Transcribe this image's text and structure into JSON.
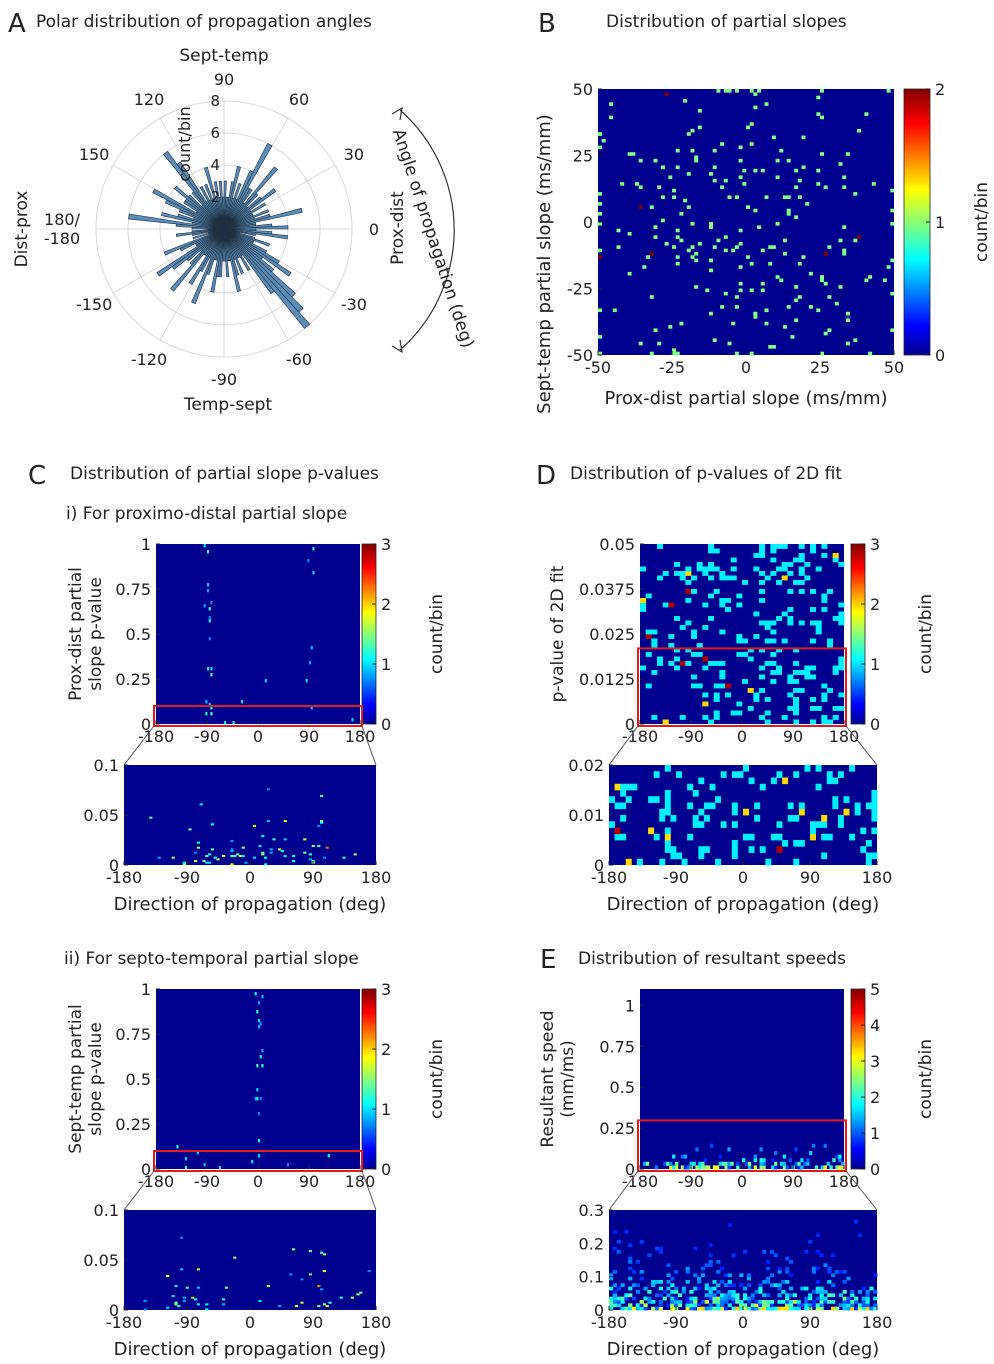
{
  "panels": {
    "A": {
      "letter": "A",
      "title": "Polar distribution of propagation angles"
    },
    "B": {
      "letter": "B",
      "title": "Distribution of partial slopes"
    },
    "C": {
      "letter": "C",
      "title": "Distribution of partial slope p-values",
      "sub_i": "i)  For proximo-distal partial slope",
      "sub_ii": "ii)  For septo-temporal partial slope"
    },
    "D": {
      "letter": "D",
      "title": "Distribution of p-values of 2D fit"
    },
    "E": {
      "letter": "E",
      "title": "Distribution of resultant speeds"
    }
  },
  "polar": {
    "labels": {
      "top": "Sept-temp",
      "bottom": "Temp-sept",
      "left": "Dist-prox",
      "right": "Prox-dist",
      "radial_unit": "count/bin",
      "arc": "Angle of propagation (deg)"
    },
    "angle_ticks": [
      "90",
      "60",
      "30",
      "0",
      "-30",
      "-60",
      "-90",
      "-120",
      "-150",
      "180/\n-180",
      "150",
      "120"
    ],
    "r_ticks": [
      "2",
      "4",
      "6",
      "8"
    ]
  },
  "chart_data": [
    {
      "id": "A",
      "type": "polar-histogram",
      "title": "Polar distribution of propagation angles",
      "rlim": [
        0,
        8
      ],
      "r_ticks": [
        2,
        4,
        6,
        8
      ],
      "bin_width_deg": 3,
      "counts": [
        1,
        2,
        3,
        2,
        1,
        2,
        1,
        4,
        3,
        2,
        2,
        5,
        4,
        3,
        2,
        3,
        5,
        2,
        2,
        4,
        3,
        2,
        5,
        3,
        2,
        2,
        4,
        3,
        3,
        2,
        2,
        3,
        2,
        2,
        4,
        3,
        2,
        3,
        2,
        2,
        3,
        2,
        5,
        8,
        7,
        6,
        4,
        3,
        5,
        4,
        3,
        2,
        2,
        3,
        2,
        1,
        2,
        4,
        3,
        2,
        4,
        3,
        2,
        2,
        5,
        3,
        2,
        3,
        2,
        2,
        3,
        2,
        4,
        3,
        2,
        3,
        5,
        2,
        3,
        3,
        6,
        4,
        2,
        3,
        2,
        4,
        3,
        2,
        2,
        3,
        2,
        3,
        2,
        3,
        2,
        4,
        2,
        3,
        2,
        3,
        2,
        5,
        6,
        3,
        2,
        3,
        4,
        3,
        3,
        2,
        5,
        4,
        3,
        2,
        3,
        4,
        2,
        6,
        3,
        2
      ]
    },
    {
      "id": "B",
      "type": "heatmap",
      "title": "Distribution of partial slopes",
      "xlabel": "Prox-dist partial slope (ms/mm)",
      "ylabel": "Sept-temp partial slope (ms/mm)",
      "xlim": [
        -50,
        50
      ],
      "ylim": [
        -50,
        50
      ],
      "xticks": [
        -50,
        -25,
        0,
        25,
        50
      ],
      "yticks": [
        -50,
        -25,
        0,
        25,
        50
      ],
      "colorbar": {
        "label": "count/bin",
        "range": [
          0,
          2
        ],
        "ticks": [
          0,
          1,
          2
        ]
      },
      "bins": [
        80,
        80
      ]
    },
    {
      "id": "C-i",
      "type": "heatmap",
      "ylabel": "Prox-dist partial\nslope p-value",
      "xlim": [
        -180,
        180
      ],
      "ylim": [
        0,
        1
      ],
      "xticks": [
        -180,
        -90,
        0,
        90,
        180
      ],
      "yticks": [
        0,
        0.25,
        0.5,
        0.75,
        1
      ],
      "colorbar": {
        "label": "count/bin",
        "range": [
          0,
          3
        ],
        "ticks": [
          0,
          1,
          2,
          3
        ]
      },
      "zoom": {
        "ylim": [
          0,
          0.1
        ],
        "yticks": [
          0,
          0.05,
          0.1
        ],
        "xlabel": "Direction of propagation (deg)"
      }
    },
    {
      "id": "C-ii",
      "type": "heatmap",
      "ylabel": "Sept-temp partial\nslope p-value",
      "xlim": [
        -180,
        180
      ],
      "ylim": [
        0,
        1
      ],
      "xticks": [
        -180,
        -90,
        0,
        90,
        180
      ],
      "yticks": [
        0,
        0.25,
        0.5,
        0.75,
        1
      ],
      "colorbar": {
        "label": "count/bin",
        "range": [
          0,
          3
        ],
        "ticks": [
          0,
          1,
          2,
          3
        ]
      },
      "zoom": {
        "ylim": [
          0,
          0.1
        ],
        "yticks": [
          0,
          0.05,
          0.1
        ],
        "xlabel": "Direction of propagation (deg)"
      }
    },
    {
      "id": "D",
      "type": "heatmap",
      "ylabel": "p-value of 2D fit",
      "xlim": [
        -180,
        180
      ],
      "ylim": [
        0,
        0.05
      ],
      "xticks": [
        -180,
        -90,
        0,
        90,
        180
      ],
      "yticks": [
        0,
        0.0125,
        0.025,
        0.0375,
        0.05
      ],
      "colorbar": {
        "label": "count/bin",
        "range": [
          0,
          3
        ],
        "ticks": [
          0,
          1,
          2,
          3
        ]
      },
      "zoom": {
        "ylim": [
          0,
          0.02
        ],
        "yticks": [
          0,
          0.01,
          0.02
        ],
        "xlabel": "Direction of propagation (deg)"
      }
    },
    {
      "id": "E",
      "type": "heatmap",
      "ylabel": "Resultant speed\n(mm/ms)",
      "xlim": [
        -180,
        180
      ],
      "ylim": [
        0,
        1.1
      ],
      "xticks": [
        -180,
        -90,
        0,
        90,
        180
      ],
      "yticks": [
        0,
        0.25,
        0.5,
        0.75,
        1
      ],
      "colorbar": {
        "label": "count/bin",
        "range": [
          0,
          5
        ],
        "ticks": [
          0,
          1,
          2,
          3,
          4,
          5
        ]
      },
      "zoom": {
        "ylim": [
          0,
          0.3
        ],
        "yticks": [
          0,
          0.1,
          0.2,
          0.3
        ],
        "xlabel": "Direction of propagation (deg)"
      }
    }
  ],
  "colors": {
    "background_map": "#00008f",
    "highlight_box": "#e31a1c",
    "polar_bar": "#5b8db8"
  }
}
